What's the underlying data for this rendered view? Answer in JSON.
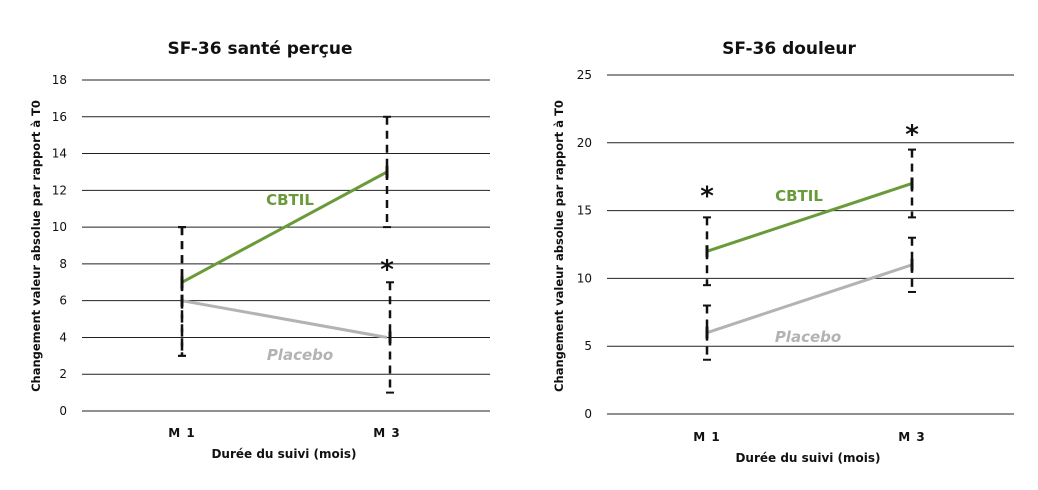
{
  "chart_data": [
    {
      "type": "line",
      "title": "SF-36 santé perçue",
      "xlabel": "Durée du suivi (mois)",
      "ylabel": "Changement valeur absolue par rapport à T0",
      "categories": [
        "M 1",
        "M 3"
      ],
      "ylim": [
        0,
        18
      ],
      "yticks": [
        0,
        2,
        4,
        6,
        8,
        10,
        12,
        14,
        16,
        18
      ],
      "grid": true,
      "series": [
        {
          "name": "CBTIL",
          "color": "#6a9a3a",
          "values": [
            7,
            13
          ],
          "error_low": [
            3,
            10
          ],
          "error_high": [
            10,
            16
          ]
        },
        {
          "name": "Placebo",
          "color": "#b3b3b3",
          "values": [
            6,
            4
          ],
          "error_low": [
            3,
            1
          ],
          "error_high": [
            10,
            7
          ]
        }
      ],
      "annotations": [
        {
          "text": "*",
          "category": "M 3",
          "y": 8
        }
      ]
    },
    {
      "type": "line",
      "title": "SF-36 douleur",
      "xlabel": "Durée du suivi (mois)",
      "ylabel": "Changement valeur absolue par rapport à T0",
      "categories": [
        "M 1",
        "M 3"
      ],
      "ylim": [
        0,
        25
      ],
      "yticks": [
        0,
        5,
        10,
        15,
        20,
        25
      ],
      "grid": true,
      "series": [
        {
          "name": "CBTIL",
          "color": "#6a9a3a",
          "values": [
            12,
            17
          ],
          "error_low": [
            9.5,
            14.5
          ],
          "error_high": [
            14.5,
            19.5
          ]
        },
        {
          "name": "Placebo",
          "color": "#b3b3b3",
          "values": [
            6,
            11
          ],
          "error_low": [
            4,
            9
          ],
          "error_high": [
            8,
            13
          ]
        }
      ],
      "annotations": [
        {
          "text": "*",
          "category": "M 1",
          "y": 16.5
        },
        {
          "text": "*",
          "category": "M 3",
          "y": 21
        }
      ]
    }
  ]
}
